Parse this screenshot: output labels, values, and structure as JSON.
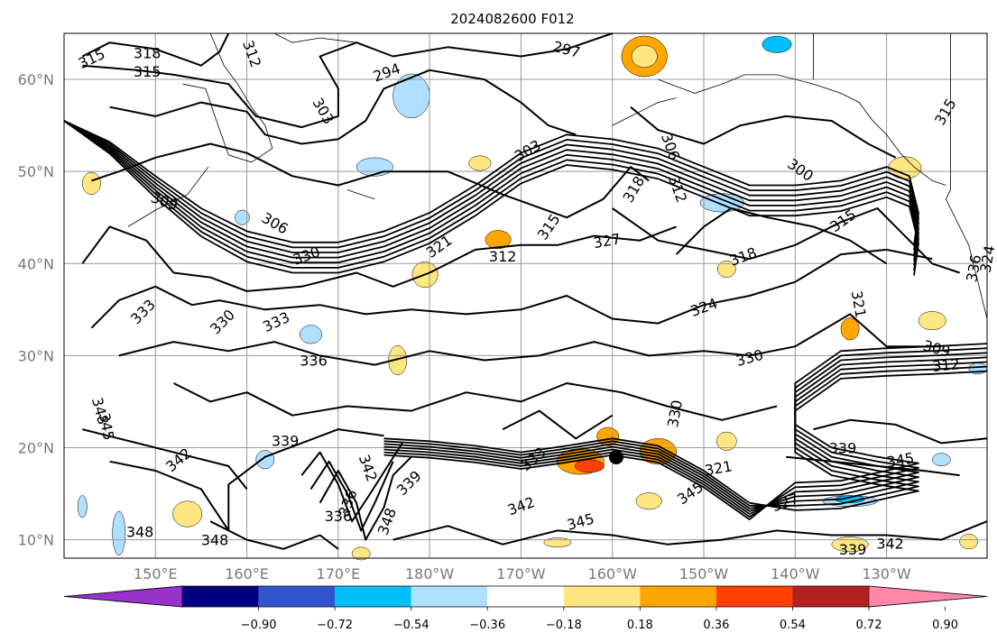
{
  "title": "2024082600 F012",
  "lat_labels": [
    "60°N",
    "50°N",
    "40°N",
    "30°N",
    "20°N",
    "10°N"
  ],
  "lat_values": [
    60,
    50,
    40,
    30,
    20,
    10
  ],
  "lon_labels": [
    "150°E",
    "160°E",
    "170°E",
    "180°W",
    "170°W",
    "160°W",
    "150°W",
    "140°W",
    "130°W"
  ],
  "lon_values": [
    150,
    160,
    170,
    180,
    190,
    200,
    210,
    220,
    230
  ],
  "extent": {
    "lon": [
      140,
      241
    ],
    "lat": [
      8,
      65
    ]
  },
  "colorbar": {
    "ticks": [
      "−0.90",
      "−0.72",
      "−0.54",
      "−0.36",
      "−0.18",
      "0.18",
      "0.36",
      "0.54",
      "0.72",
      "0.90"
    ],
    "colors": [
      "#9933cc",
      "#000080",
      "#3355cc",
      "#00bfff",
      "#b0e0ff",
      "#ffffff",
      "#ffe680",
      "#ffa500",
      "#ff4000",
      "#b22222",
      "#ff88aa"
    ]
  },
  "contour_labels": [
    {
      "text": "315",
      "lon": 143.0,
      "lat": 62.3,
      "rot": -25
    },
    {
      "text": "318",
      "lon": 149.1,
      "lat": 62.9,
      "rot": 0
    },
    {
      "text": "315",
      "lon": 149.1,
      "lat": 60.9,
      "rot": 0
    },
    {
      "text": "312",
      "lon": 160.6,
      "lat": 62.8,
      "rot": 70
    },
    {
      "text": "294",
      "lon": 175.3,
      "lat": 60.8,
      "rot": -20
    },
    {
      "text": "297",
      "lon": 195.0,
      "lat": 63.3,
      "rot": 15
    },
    {
      "text": "303",
      "lon": 168.4,
      "lat": 56.6,
      "rot": 60
    },
    {
      "text": "303",
      "lon": 190.7,
      "lat": 52.3,
      "rot": -30
    },
    {
      "text": "306",
      "lon": 206.4,
      "lat": 52.7,
      "rot": 70
    },
    {
      "text": "300",
      "lon": 220.6,
      "lat": 50.2,
      "rot": 35
    },
    {
      "text": "312",
      "lon": 207.2,
      "lat": 48.1,
      "rot": 70
    },
    {
      "text": "318",
      "lon": 202.3,
      "lat": 48.1,
      "rot": -60
    },
    {
      "text": "315",
      "lon": 236.4,
      "lat": 56.5,
      "rot": -60
    },
    {
      "text": "309",
      "lon": 151.0,
      "lat": 46.8,
      "rot": 20
    },
    {
      "text": "306",
      "lon": 163.1,
      "lat": 44.4,
      "rot": 30
    },
    {
      "text": "330",
      "lon": 166.5,
      "lat": 40.9,
      "rot": -20
    },
    {
      "text": "321",
      "lon": 181.0,
      "lat": 41.9,
      "rot": -35
    },
    {
      "text": "312",
      "lon": 188.0,
      "lat": 40.8,
      "rot": 0
    },
    {
      "text": "315",
      "lon": 193.0,
      "lat": 44.0,
      "rot": -55
    },
    {
      "text": "327",
      "lon": 199.4,
      "lat": 42.5,
      "rot": -10
    },
    {
      "text": "315",
      "lon": 225.2,
      "lat": 44.7,
      "rot": -35
    },
    {
      "text": "318",
      "lon": 214.3,
      "lat": 40.8,
      "rot": -20
    },
    {
      "text": "333",
      "lon": 148.6,
      "lat": 34.8,
      "rot": -45
    },
    {
      "text": "330",
      "lon": 157.3,
      "lat": 33.7,
      "rot": -45
    },
    {
      "text": "333",
      "lon": 163.2,
      "lat": 33.7,
      "rot": -25
    },
    {
      "text": "336",
      "lon": 167.3,
      "lat": 29.5,
      "rot": 0
    },
    {
      "text": "324",
      "lon": 210.0,
      "lat": 35.3,
      "rot": -20
    },
    {
      "text": "321",
      "lon": 227.0,
      "lat": 35.6,
      "rot": 80
    },
    {
      "text": "309",
      "lon": 235.5,
      "lat": 30.8,
      "rot": 15
    },
    {
      "text": "330",
      "lon": 215.0,
      "lat": 29.8,
      "rot": -15
    },
    {
      "text": "312",
      "lon": 236.5,
      "lat": 29.0,
      "rot": -5
    },
    {
      "text": "330",
      "lon": 206.8,
      "lat": 23.7,
      "rot": -80
    },
    {
      "text": "348",
      "lon": 144.0,
      "lat": 24.0,
      "rot": 75
    },
    {
      "text": "345",
      "lon": 144.7,
      "lat": 22.3,
      "rot": 80
    },
    {
      "text": "339",
      "lon": 164.2,
      "lat": 20.8,
      "rot": 0
    },
    {
      "text": "342",
      "lon": 152.5,
      "lat": 18.7,
      "rot": -40
    },
    {
      "text": "342",
      "lon": 173.3,
      "lat": 17.8,
      "rot": 70
    },
    {
      "text": "339",
      "lon": 177.7,
      "lat": 16.2,
      "rot": -45
    },
    {
      "text": "336",
      "lon": 171.0,
      "lat": 14.0,
      "rot": -70
    },
    {
      "text": "336",
      "lon": 170.0,
      "lat": 12.6,
      "rot": 0
    },
    {
      "text": "348",
      "lon": 175.3,
      "lat": 12.0,
      "rot": -70
    },
    {
      "text": "348",
      "lon": 148.3,
      "lat": 10.9,
      "rot": 0
    },
    {
      "text": "348",
      "lon": 156.5,
      "lat": 10.0,
      "rot": 0
    },
    {
      "text": "333",
      "lon": 191.3,
      "lat": 18.8,
      "rot": -40
    },
    {
      "text": "342",
      "lon": 190.0,
      "lat": 13.7,
      "rot": -20
    },
    {
      "text": "345",
      "lon": 196.5,
      "lat": 12.0,
      "rot": -15
    },
    {
      "text": "321",
      "lon": 211.6,
      "lat": 17.8,
      "rot": -10
    },
    {
      "text": "345",
      "lon": 208.5,
      "lat": 15.1,
      "rot": -35
    },
    {
      "text": "327",
      "lon": 218.9,
      "lat": 14.1,
      "rot": -20
    },
    {
      "text": "339",
      "lon": 225.2,
      "lat": 20.0,
      "rot": 0
    },
    {
      "text": "345",
      "lon": 231.5,
      "lat": 18.7,
      "rot": -10
    },
    {
      "text": "339",
      "lon": 226.3,
      "lat": 9.0,
      "rot": 0
    },
    {
      "text": "342",
      "lon": 230.4,
      "lat": 9.6,
      "rot": 0
    },
    {
      "text": "336",
      "lon": 239.5,
      "lat": 39.5,
      "rot": -80
    },
    {
      "text": "324",
      "lon": 241.0,
      "lat": 40.5,
      "rot": -80
    }
  ]
}
